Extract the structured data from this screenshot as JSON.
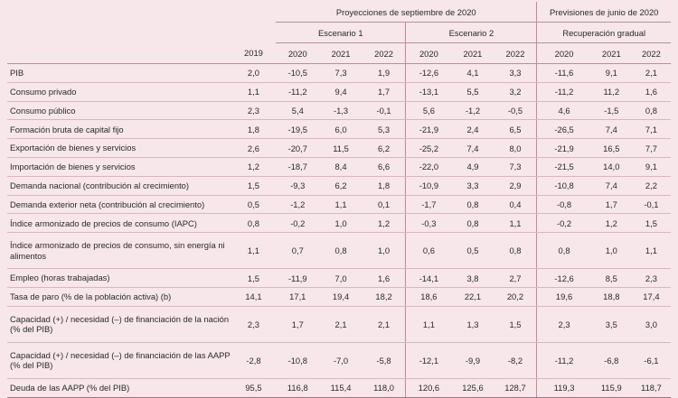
{
  "header": {
    "group_sept": "Proyecciones de septiembre de 2020",
    "group_june": "Previsiones de junio de 2020",
    "scenario_1": "Escenario 1",
    "scenario_2": "Escenario 2",
    "scenario_gradual": "Recuperación gradual",
    "years": [
      "2019",
      "2020",
      "2021",
      "2022",
      "2020",
      "2021",
      "2022",
      "2020",
      "2021",
      "2022"
    ]
  },
  "rows": [
    {
      "label": "PIB",
      "values": [
        "2,0",
        "-10,5",
        "7,3",
        "1,9",
        "-12,6",
        "4,1",
        "3,3",
        "-11,6",
        "9,1",
        "2,1"
      ]
    },
    {
      "label": "Consumo privado",
      "values": [
        "1,1",
        "-11,2",
        "9,4",
        "1,7",
        "-13,1",
        "5,5",
        "3,2",
        "-11,2",
        "11,2",
        "1,6"
      ]
    },
    {
      "label": "Consumo público",
      "values": [
        "2,3",
        "5,4",
        "-1,3",
        "-0,1",
        "5,6",
        "-1,2",
        "-0,5",
        "4,6",
        "-1,5",
        "0,8"
      ]
    },
    {
      "label": "Formación bruta de capital fijo",
      "values": [
        "1,8",
        "-19,5",
        "6,0",
        "5,3",
        "-21,9",
        "2,4",
        "6,5",
        "-26,5",
        "7,4",
        "7,1"
      ]
    },
    {
      "label": "Exportación de bienes y servicios",
      "values": [
        "2,6",
        "-20,7",
        "11,5",
        "6,2",
        "-25,2",
        "7,4",
        "8,0",
        "-21,9",
        "16,5",
        "7,7"
      ]
    },
    {
      "label": "Importación de bienes y servicios",
      "values": [
        "1,2",
        "-18,7",
        "8,4",
        "6,6",
        "-22,0",
        "4,9",
        "7,3",
        "-21,5",
        "14,0",
        "9,1"
      ]
    },
    {
      "label": "Demanda nacional (contribución al crecimiento)",
      "values": [
        "1,5",
        "-9,3",
        "6,2",
        "1,8",
        "-10,9",
        "3,3",
        "2,9",
        "-10,8",
        "7,4",
        "2,2"
      ]
    },
    {
      "label": "Demanda exterior neta (contribución al crecimiento)",
      "values": [
        "0,5",
        "-1,2",
        "1,1",
        "0,1",
        "-1,7",
        "0,8",
        "0,4",
        "-0,8",
        "1,7",
        "-0,1"
      ]
    },
    {
      "label": "Índice armonizado de precios de consumo (IAPC)",
      "values": [
        "0,8",
        "-0,2",
        "1,0",
        "1,2",
        "-0,3",
        "0,8",
        "1,1",
        "-0,2",
        "1,2",
        "1,5"
      ]
    },
    {
      "label": "Índice armonizado de precios de consumo, sin energía ni alimentos",
      "values": [
        "1,1",
        "0,7",
        "0,8",
        "1,0",
        "0,6",
        "0,5",
        "0,8",
        "0,8",
        "1,0",
        "1,1"
      ]
    },
    {
      "label": "Empleo (horas trabajadas)",
      "values": [
        "1,5",
        "-11,9",
        "7,0",
        "1,6",
        "-14,1",
        "3,8",
        "2,7",
        "-12,6",
        "8,5",
        "2,3"
      ]
    },
    {
      "label": "Tasa de paro (% de la población activa) (b)",
      "values": [
        "14,1",
        "17,1",
        "19,4",
        "18,2",
        "18,6",
        "22,1",
        "20,2",
        "19,6",
        "18,8",
        "17,4"
      ]
    },
    {
      "label": "Capacidad (+) / necesidad (–) de financiación de la nación (% del PIB)",
      "values": [
        "2,3",
        "1,7",
        "2,1",
        "2,1",
        "1,1",
        "1,3",
        "1,5",
        "2,3",
        "3,5",
        "3,0"
      ]
    },
    {
      "label": "Capacidad (+) / necesidad (–) de financiación de las AAPP (% del PIB)",
      "values": [
        "-2,8",
        "-10,8",
        "-7,0",
        "-5,8",
        "-12,1",
        "-9,9",
        "-8,2",
        "-11,2",
        "-6,8",
        "-6,1"
      ]
    },
    {
      "label": "Deuda de las AAPP (% del PIB)",
      "values": [
        "95,5",
        "116,8",
        "115,4",
        "118,0",
        "120,6",
        "125,6",
        "128,7",
        "119,3",
        "115,9",
        "118,7"
      ]
    }
  ]
}
